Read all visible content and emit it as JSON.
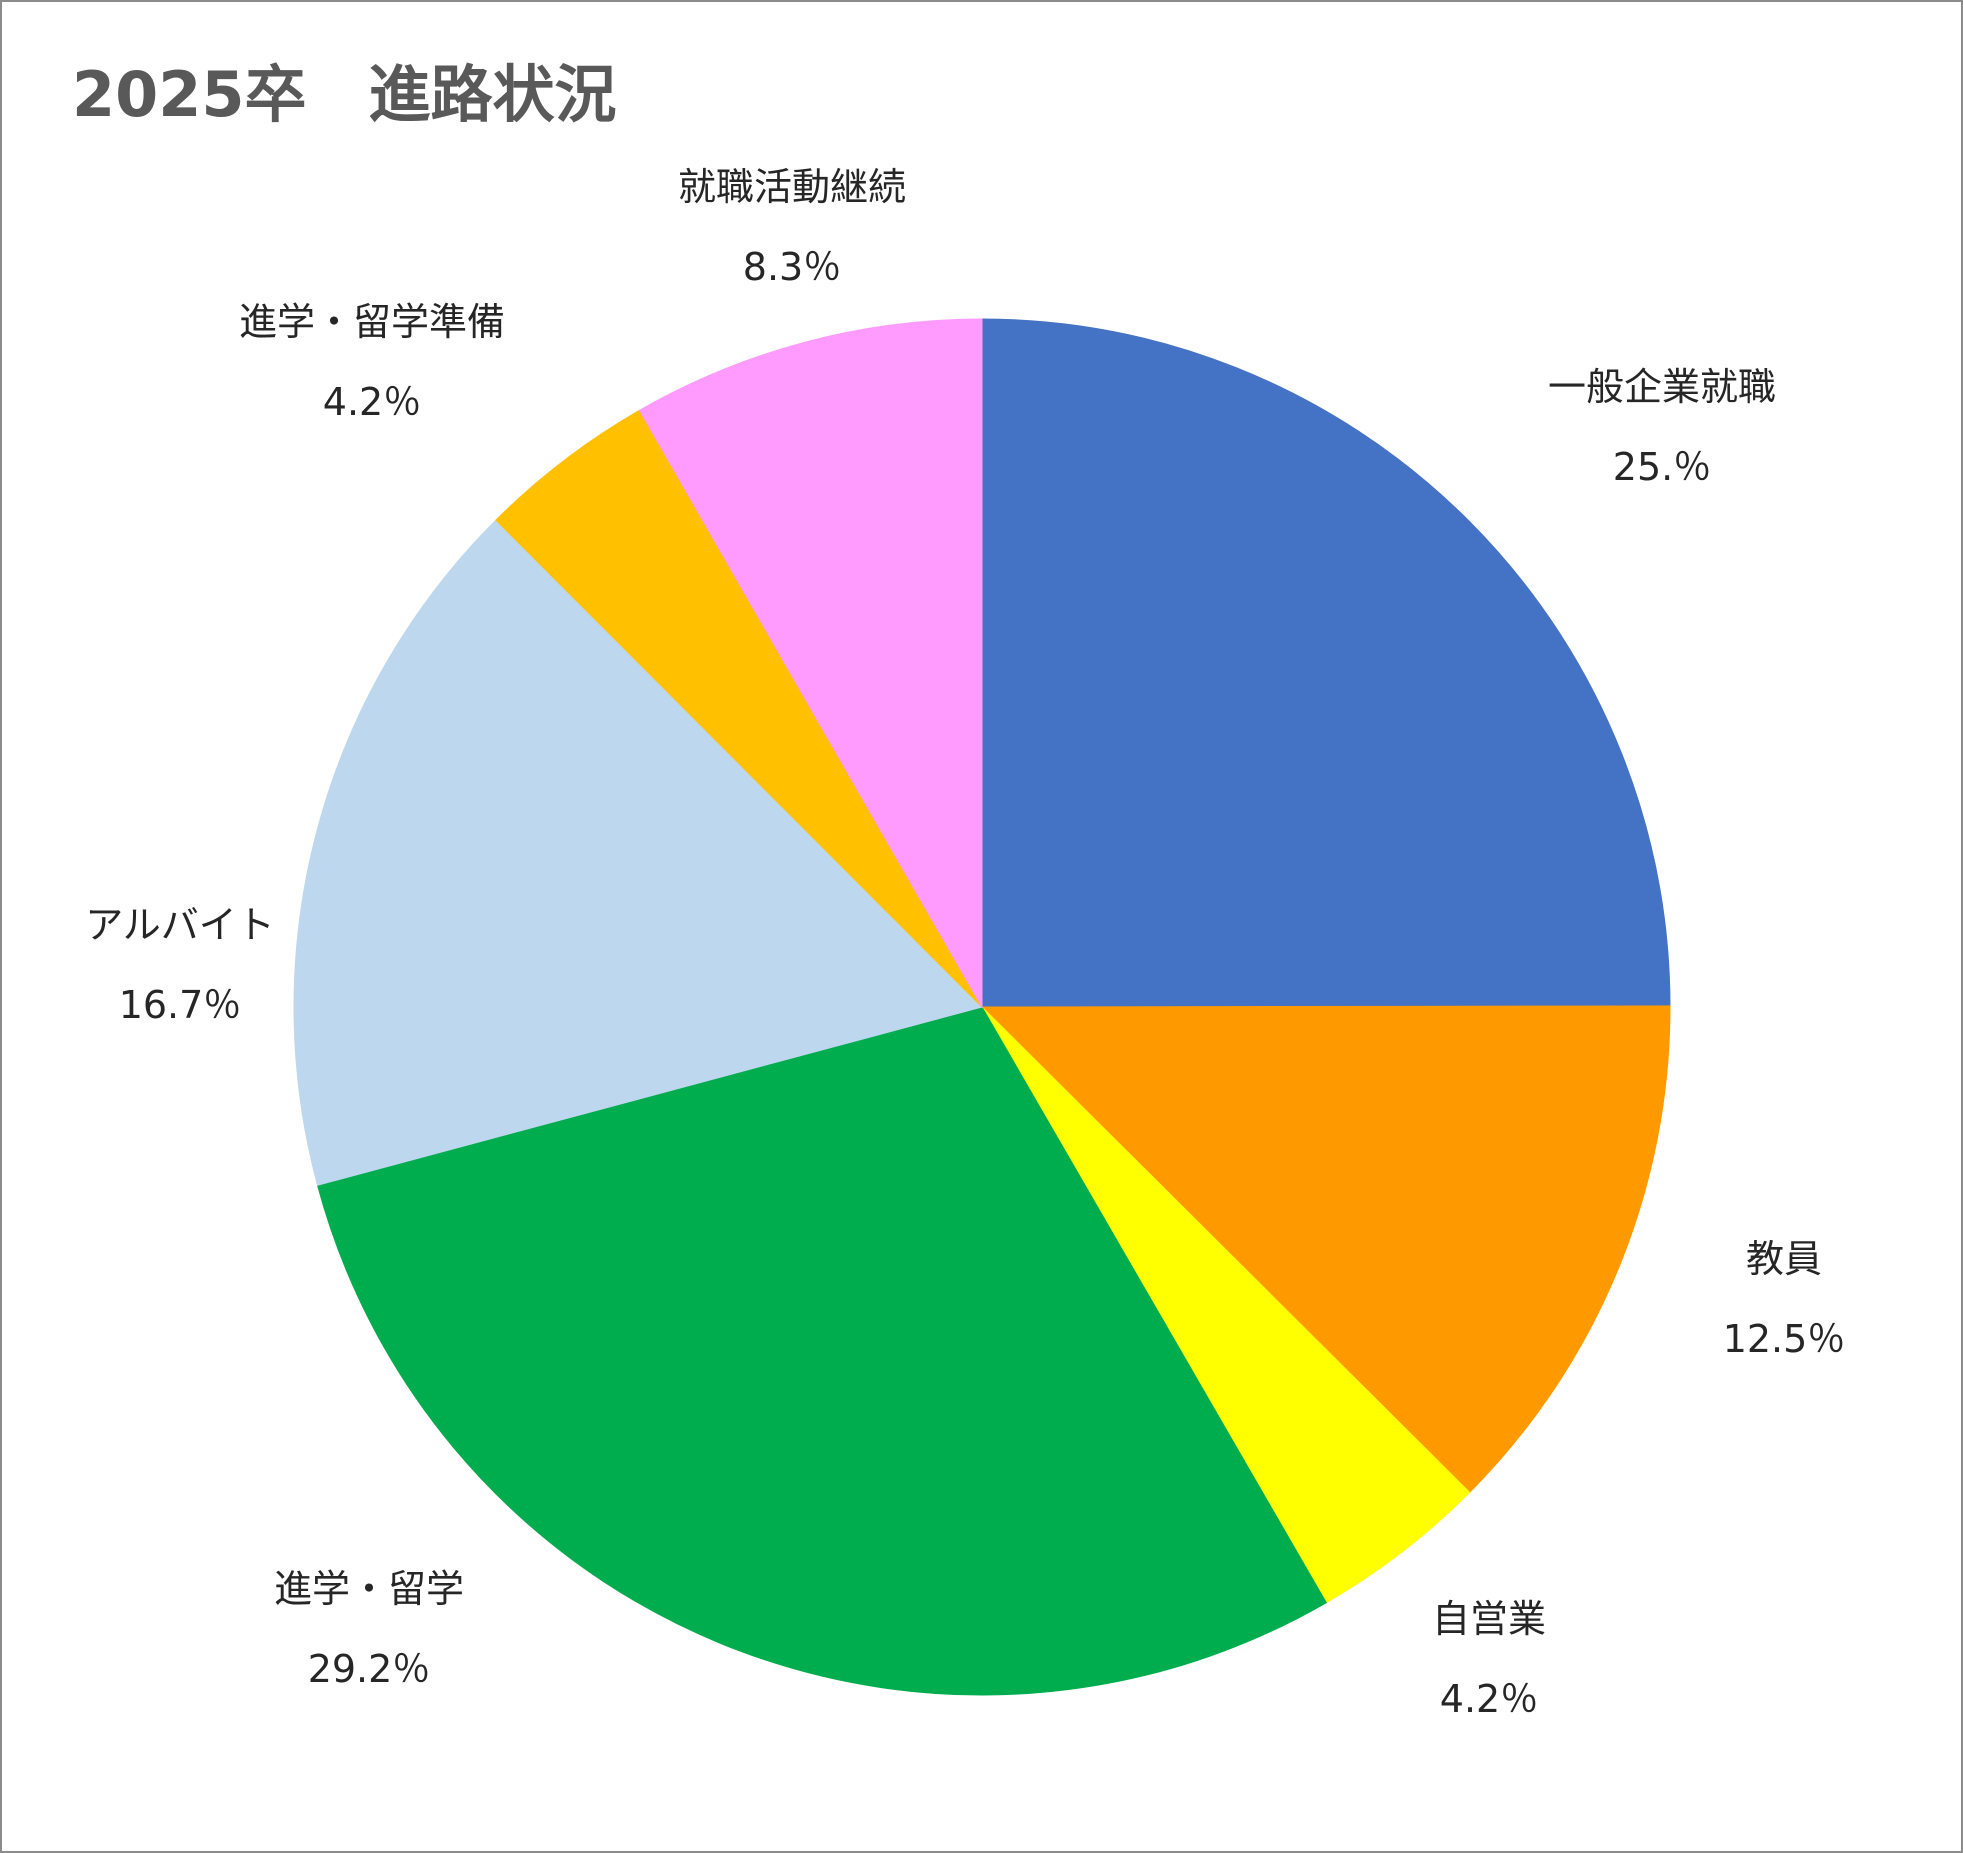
{
  "chart_data": {
    "type": "pie",
    "title": "2025卒　進路状況",
    "start_angle_deg": 0,
    "direction": "clockwise",
    "slices": [
      {
        "name": "一般企業就職",
        "value": 25.0,
        "label": "25.％",
        "color": "#4472C4"
      },
      {
        "name": "教員",
        "value": 12.5,
        "label": "12.5％",
        "color": "#FF9900"
      },
      {
        "name": "自営業",
        "value": 4.2,
        "label": "4.2％",
        "color": "#FFFF00"
      },
      {
        "name": "進学・留学",
        "value": 29.2,
        "label": "29.2％",
        "color": "#00AD4E"
      },
      {
        "name": "アルバイト",
        "value": 16.7,
        "label": "16.7％",
        "color": "#BDD7EE"
      },
      {
        "name": "進学・留学準備",
        "value": 4.2,
        "label": "4.2％",
        "color": "#FFC000"
      },
      {
        "name": "就職活動継続",
        "value": 8.3,
        "label": "8.3％",
        "color": "#FF9BFF"
      }
    ],
    "legend": "none",
    "data_labels": "outside"
  }
}
